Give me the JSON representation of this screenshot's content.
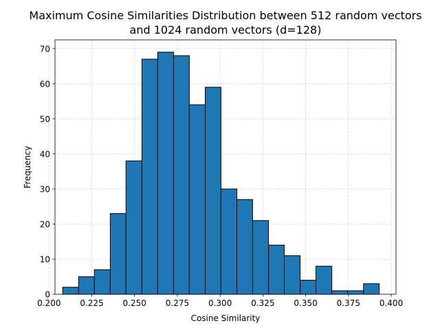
{
  "chart_data": {
    "type": "bar",
    "title_lines": [
      "Maximum Cosine Similarities Distribution between 512 random vectors",
      "and 1024 random vectors (d=128)"
    ],
    "xlabel": "Cosine Similarity",
    "ylabel": "Frequency",
    "xlim": [
      0.2035,
      0.4028
    ],
    "ylim": [
      0,
      72.5
    ],
    "grid": true,
    "xticks": [
      "0.200",
      "0.225",
      "0.250",
      "0.275",
      "0.300",
      "0.325",
      "0.350",
      "0.375",
      "0.400"
    ],
    "yticks": [
      "0",
      "10",
      "20",
      "30",
      "40",
      "50",
      "60",
      "70"
    ],
    "bin_edges": [
      0.208,
      0.2173,
      0.2265,
      0.2358,
      0.245,
      0.2543,
      0.2635,
      0.2728,
      0.282,
      0.2913,
      0.3005,
      0.3098,
      0.319,
      0.3283,
      0.3375,
      0.3468,
      0.356,
      0.3653,
      0.3745,
      0.3838,
      0.393
    ],
    "values": [
      2,
      5,
      7,
      23,
      38,
      67,
      69,
      68,
      54,
      59,
      30,
      27,
      21,
      14,
      11,
      4,
      8,
      1,
      1,
      3
    ],
    "colors": {
      "bar": "#1f77b4",
      "edge": "#000000",
      "grid": "#b0b0b0"
    }
  }
}
